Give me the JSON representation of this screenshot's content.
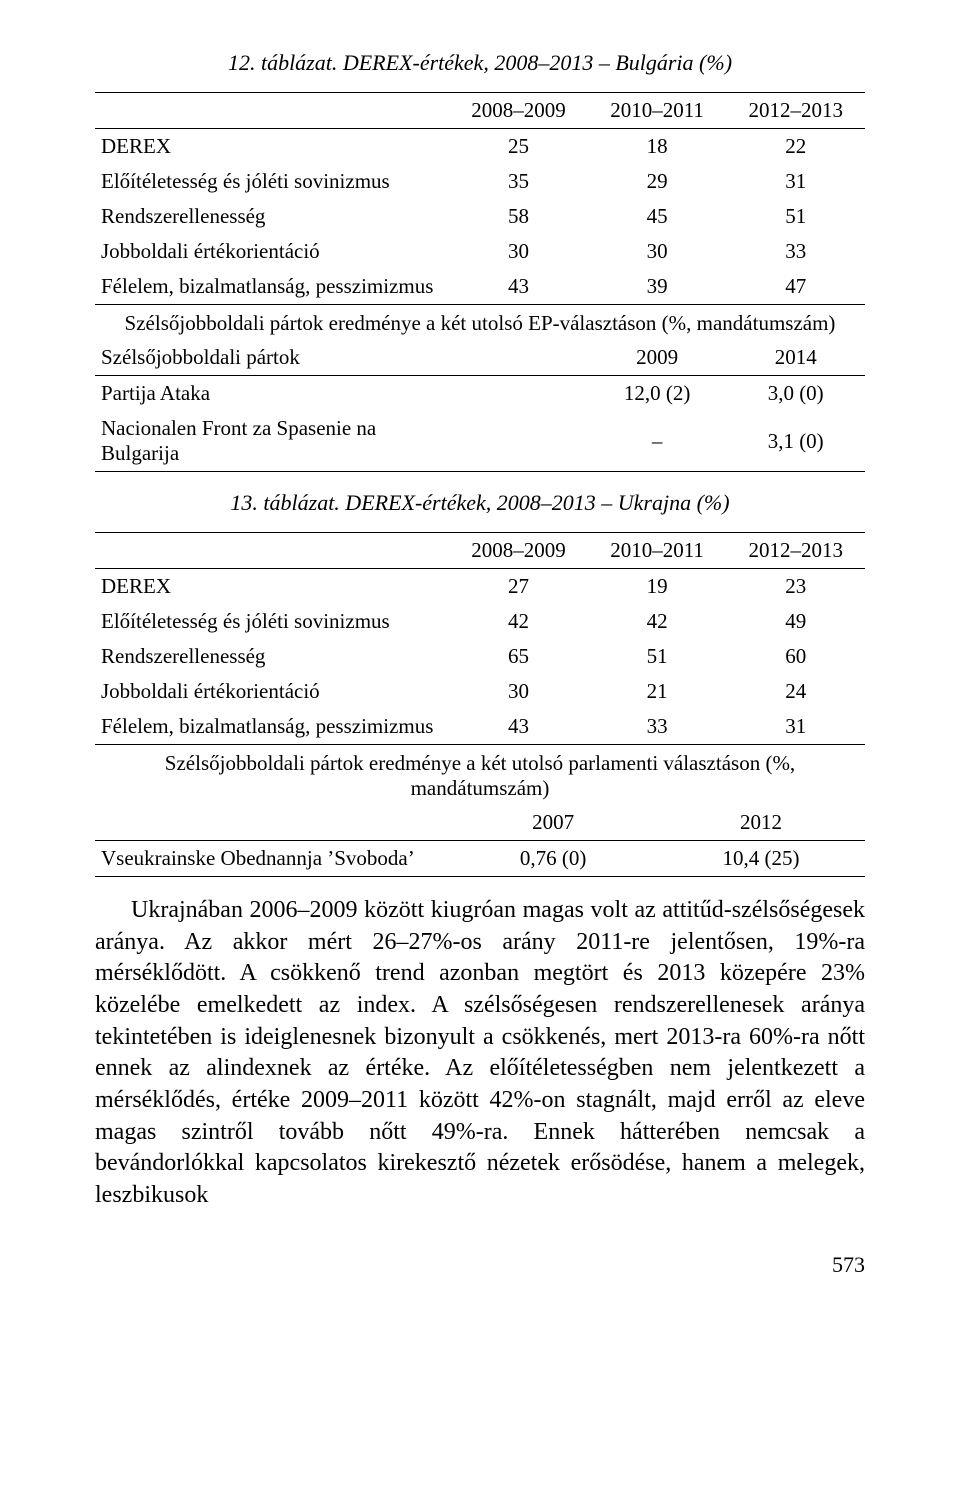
{
  "table12": {
    "caption": "12. táblázat. DEREX-értékek, 2008–2013 – Bulgária (%)",
    "headers": [
      "2008–2009",
      "2010–2011",
      "2012–2013"
    ],
    "rows": [
      {
        "label": "DEREX",
        "vals": [
          "25",
          "18",
          "22"
        ]
      },
      {
        "label": "Előítéletesség és jóléti sovinizmus",
        "vals": [
          "35",
          "29",
          "31"
        ]
      },
      {
        "label": "Rendszerellenesség",
        "vals": [
          "58",
          "45",
          "51"
        ]
      },
      {
        "label": "Jobboldali értékorientáció",
        "vals": [
          "30",
          "30",
          "33"
        ]
      },
      {
        "label": "Félelem, bizalmatlanság, pesszimizmus",
        "vals": [
          "43",
          "39",
          "47"
        ]
      }
    ],
    "subheader": "Szélsőjobboldali pártok eredménye a két utolsó EP-választáson (%, mandátumszám)",
    "years_label": "Szélsőjobboldali pártok",
    "years": [
      "2009",
      "2014"
    ],
    "parties": [
      {
        "label": "Partija Ataka",
        "vals": [
          "12,0 (2)",
          "3,0 (0)"
        ]
      },
      {
        "label": "Nacionalen Front za Spasenie na Bulgarija",
        "vals": [
          "–",
          "3,1 (0)"
        ]
      }
    ]
  },
  "table13": {
    "caption": "13. táblázat. DEREX-értékek, 2008–2013 – Ukrajna (%)",
    "headers": [
      "2008–2009",
      "2010–2011",
      "2012–2013"
    ],
    "rows": [
      {
        "label": "DEREX",
        "vals": [
          "27",
          "19",
          "23"
        ]
      },
      {
        "label": "Előítéletesség és jóléti sovinizmus",
        "vals": [
          "42",
          "42",
          "49"
        ]
      },
      {
        "label": "Rendszerellenesség",
        "vals": [
          "65",
          "51",
          "60"
        ]
      },
      {
        "label": "Jobboldali értékorientáció",
        "vals": [
          "30",
          "21",
          "24"
        ]
      },
      {
        "label": "Félelem, bizalmatlanság, pesszimizmus",
        "vals": [
          "43",
          "33",
          "31"
        ]
      }
    ],
    "subheader": "Szélsőjobboldali pártok eredménye a két utolsó parlamenti választáson (%, mandátumszám)",
    "years": [
      "2007",
      "2012"
    ],
    "parties": [
      {
        "label": "Vseukrainske Obednannja ’Svoboda’",
        "vals": [
          "0,76 (0)",
          "10,4 (25)"
        ]
      }
    ]
  },
  "body": "Ukrajnában 2006–2009 között kiugróan magas volt az attitűd-szélsőségesek aránya. Az akkor mért 26–27%-os arány 2011-re jelentősen, 19%-ra mérséklődött. A csökkenő trend azonban megtört és 2013 közepére 23% közelébe emelkedett az index. A szélsőségesen rendszerellenesek aránya tekintetében is ideiglenesnek bizonyult a csökkenés, mert 2013-ra 60%-ra nőtt ennek az alindexnek az értéke. Az előítéletességben nem jelentkezett a mérséklődés, értéke 2009–2011 között 42%-on stagnált, majd erről az eleve magas szintről tovább nőtt 49%-ra. Ennek hátterében nemcsak a bevándorlókkal kapcsolatos kirekesztő nézetek erősödése, hanem a melegek, leszbikusok",
  "pagenum": "573"
}
